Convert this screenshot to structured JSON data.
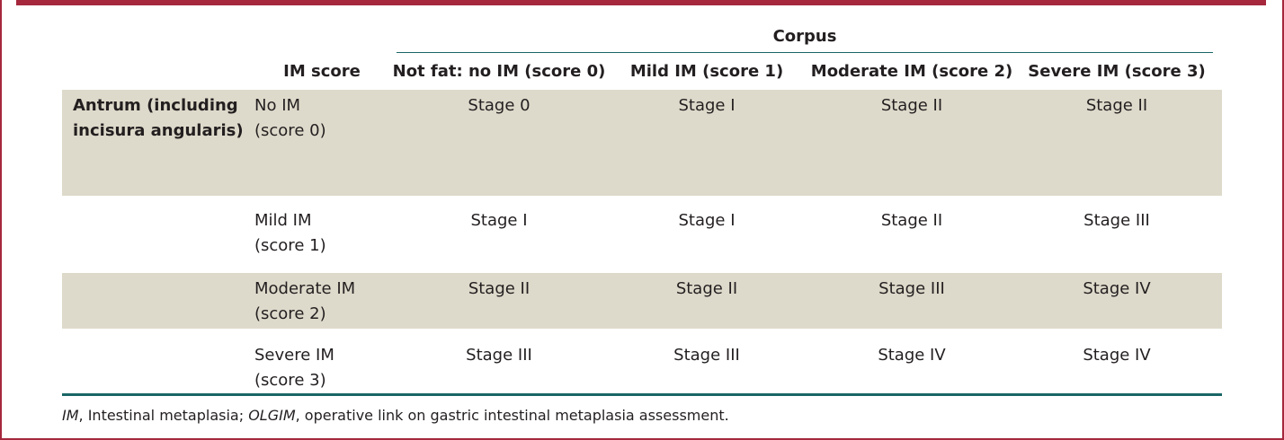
{
  "header": {
    "corpus": "Corpus",
    "im_score": "IM score",
    "columns": [
      "Not fat: no IM (score 0)",
      "Mild IM (score 1)",
      "Moderate IM (score 2)",
      "Severe IM (score 3)"
    ]
  },
  "rows": [
    {
      "antrum": "Antrum (including incisura angularis)",
      "im_name": "No IM",
      "im_score": "(score 0)",
      "stages": [
        "Stage 0",
        "Stage I",
        "Stage II",
        "Stage II"
      ]
    },
    {
      "antrum": "",
      "im_name": "Mild IM",
      "im_score": "(score 1)",
      "stages": [
        "Stage I",
        "Stage I",
        "Stage II",
        "Stage III"
      ]
    },
    {
      "antrum": "",
      "im_name": "Moderate IM",
      "im_score": "(score 2)",
      "stages": [
        "Stage II",
        "Stage II",
        "Stage III",
        "Stage IV"
      ]
    },
    {
      "antrum": "",
      "im_name": "Severe IM",
      "im_score": "(score 3)",
      "stages": [
        "Stage III",
        "Stage III",
        "Stage IV",
        "Stage IV"
      ]
    }
  ],
  "footnote": {
    "abbr1": "IM",
    "def1": ", Intestinal metaplasia; ",
    "abbr2": "OLGIM",
    "def2": ", operative link on gastric intestinal metaplasia assessment."
  },
  "colors": {
    "frame": "#a5283d",
    "rule": "#1a6566",
    "shade": "#dedacb"
  }
}
